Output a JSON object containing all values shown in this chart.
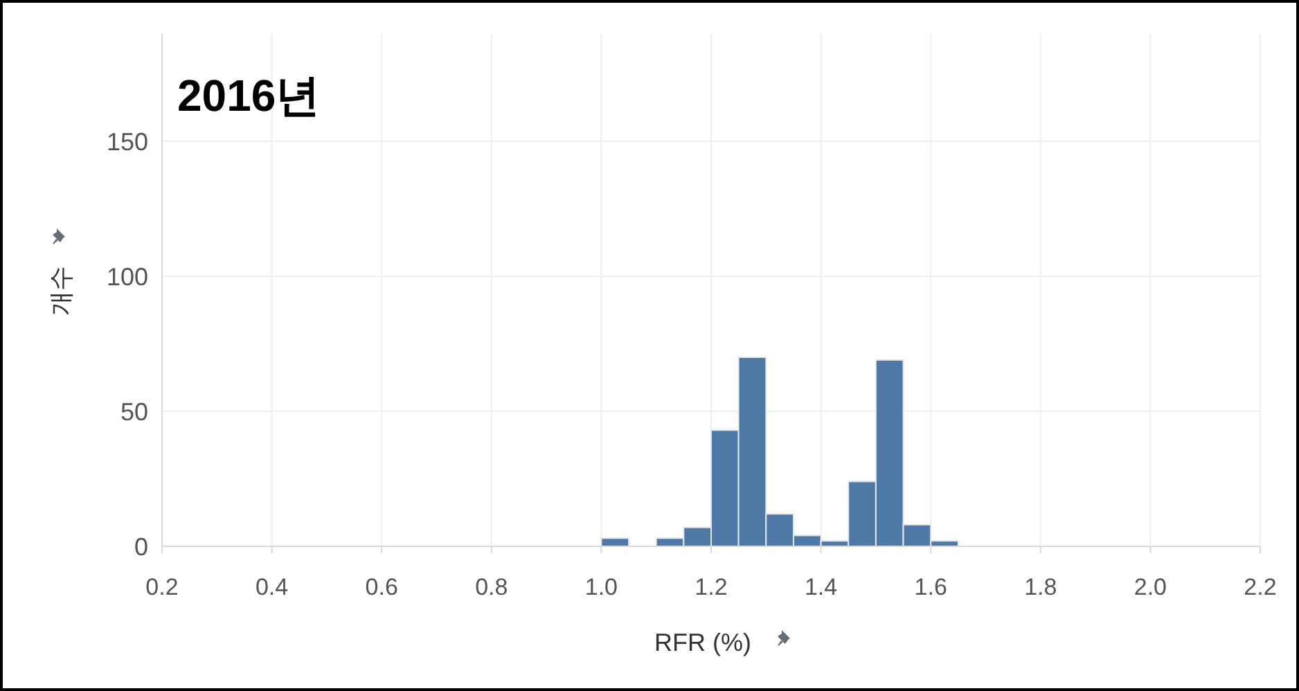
{
  "chart_data": {
    "type": "histogram",
    "title": "2016년",
    "xlabel": "RFR (%)",
    "ylabel": "개수",
    "bins": [
      1.0,
      1.05,
      1.1,
      1.15,
      1.2,
      1.25,
      1.3,
      1.35,
      1.4,
      1.45,
      1.5,
      1.55,
      1.6,
      1.65
    ],
    "values": [
      3,
      0,
      3,
      7,
      43,
      70,
      12,
      4,
      2,
      24,
      69,
      8,
      2
    ],
    "color": "#4e79a7",
    "xlim": [
      0.2,
      2.2
    ],
    "xticks": [
      0.2,
      0.4,
      0.6,
      0.8,
      "1.0",
      1.2,
      1.4,
      1.6,
      1.8,
      "2.0",
      2.2
    ],
    "ylim": [
      0,
      190
    ],
    "yticks": [
      0,
      50,
      100,
      150
    ],
    "grid": true
  }
}
